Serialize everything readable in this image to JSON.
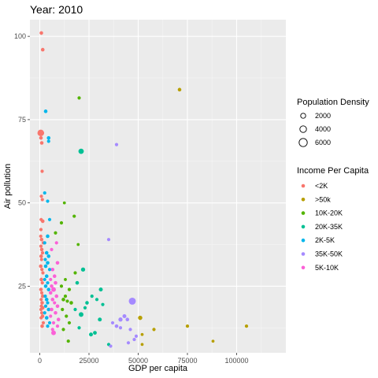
{
  "chart_data": {
    "type": "scatter",
    "title": "Year: 2010",
    "xlabel": "GDP per capita",
    "ylabel": "Air pollution",
    "xlim": [
      -5000,
      125000
    ],
    "ylim": [
      5,
      105
    ],
    "x_ticks": [
      0,
      25000,
      50000,
      75000,
      100000
    ],
    "x_tick_labels": [
      "0",
      "25000",
      "50000",
      "75000",
      "100000"
    ],
    "y_ticks": [
      25,
      50,
      75,
      100
    ],
    "y_tick_labels": [
      "25",
      "50",
      "75",
      "100"
    ],
    "grid": true,
    "background": "#ebebeb",
    "size_legend": {
      "title": "Population Density",
      "entries": [
        {
          "label": "2000",
          "value": 2000
        },
        {
          "label": "4000",
          "value": 4000
        },
        {
          "label": "6000",
          "value": 6000
        }
      ]
    },
    "color_legend": {
      "title": "Income Per Capita",
      "position": "right"
    },
    "series": [
      {
        "name": "<2K",
        "color": "#F8766D",
        "points": [
          {
            "x": 800,
            "y": 101,
            "s": 120
          },
          {
            "x": 1500,
            "y": 96,
            "s": 120
          },
          {
            "x": 500,
            "y": 71,
            "s": 400
          },
          {
            "x": 1200,
            "y": 71,
            "s": 150
          },
          {
            "x": 600,
            "y": 69.5,
            "s": 120
          },
          {
            "x": 1000,
            "y": 68,
            "s": 120
          },
          {
            "x": 1200,
            "y": 59.5,
            "s": 100
          },
          {
            "x": 800,
            "y": 52,
            "s": 100
          },
          {
            "x": 1300,
            "y": 51,
            "s": 100
          },
          {
            "x": 700,
            "y": 45,
            "s": 100
          },
          {
            "x": 1500,
            "y": 44.5,
            "s": 120
          },
          {
            "x": 600,
            "y": 42,
            "s": 100
          },
          {
            "x": 500,
            "y": 40,
            "s": 100
          },
          {
            "x": 900,
            "y": 39,
            "s": 120
          },
          {
            "x": 1800,
            "y": 38,
            "s": 100
          },
          {
            "x": 600,
            "y": 37,
            "s": 100
          },
          {
            "x": 1000,
            "y": 36,
            "s": 120
          },
          {
            "x": 1400,
            "y": 35,
            "s": 100
          },
          {
            "x": 700,
            "y": 34,
            "s": 120
          },
          {
            "x": 900,
            "y": 33,
            "s": 100
          },
          {
            "x": 500,
            "y": 31,
            "s": 120
          },
          {
            "x": 1100,
            "y": 30,
            "s": 100
          },
          {
            "x": 1600,
            "y": 29,
            "s": 100
          },
          {
            "x": 800,
            "y": 27,
            "s": 120
          },
          {
            "x": 1300,
            "y": 26,
            "s": 100
          },
          {
            "x": 600,
            "y": 24,
            "s": 120
          },
          {
            "x": 1000,
            "y": 23,
            "s": 100
          },
          {
            "x": 1500,
            "y": 22,
            "s": 120
          },
          {
            "x": 700,
            "y": 21,
            "s": 100
          },
          {
            "x": 1200,
            "y": 20,
            "s": 120
          },
          {
            "x": 800,
            "y": 19,
            "s": 100
          },
          {
            "x": 1500,
            "y": 18.5,
            "s": 120
          },
          {
            "x": 600,
            "y": 18,
            "s": 100
          },
          {
            "x": 1000,
            "y": 17,
            "s": 100
          },
          {
            "x": 1400,
            "y": 16,
            "s": 120
          },
          {
            "x": 700,
            "y": 15.5,
            "s": 100
          },
          {
            "x": 1800,
            "y": 14,
            "s": 100
          },
          {
            "x": 1200,
            "y": 13,
            "s": 120
          }
        ]
      },
      {
        "name": ">50k",
        "color": "#B79F00",
        "points": [
          {
            "x": 71000,
            "y": 84,
            "s": 120
          },
          {
            "x": 51000,
            "y": 15.5,
            "s": 170
          },
          {
            "x": 58000,
            "y": 12,
            "s": 100
          },
          {
            "x": 75000,
            "y": 13,
            "s": 100
          },
          {
            "x": 88000,
            "y": 8.5,
            "s": 80
          },
          {
            "x": 105000,
            "y": 13,
            "s": 100
          },
          {
            "x": 52000,
            "y": 10.5,
            "s": 80
          },
          {
            "x": 52000,
            "y": 7.5,
            "s": 80
          }
        ]
      },
      {
        "name": "10K-20K",
        "color": "#53B400",
        "points": [
          {
            "x": 20000,
            "y": 81.5,
            "s": 100
          },
          {
            "x": 12500,
            "y": 50,
            "s": 80
          },
          {
            "x": 17500,
            "y": 46,
            "s": 100
          },
          {
            "x": 11000,
            "y": 44,
            "s": 100
          },
          {
            "x": 19500,
            "y": 37.5,
            "s": 80
          },
          {
            "x": 18000,
            "y": 29,
            "s": 100
          },
          {
            "x": 13000,
            "y": 27,
            "s": 80
          },
          {
            "x": 11000,
            "y": 25,
            "s": 100
          },
          {
            "x": 15000,
            "y": 24,
            "s": 100
          },
          {
            "x": 13000,
            "y": 22,
            "s": 100
          },
          {
            "x": 12000,
            "y": 21,
            "s": 120
          },
          {
            "x": 14000,
            "y": 20.5,
            "s": 100
          },
          {
            "x": 16000,
            "y": 20,
            "s": 120
          },
          {
            "x": 11500,
            "y": 18,
            "s": 100
          },
          {
            "x": 13500,
            "y": 16,
            "s": 100
          },
          {
            "x": 15000,
            "y": 14,
            "s": 100
          },
          {
            "x": 12000,
            "y": 12,
            "s": 100
          },
          {
            "x": 14500,
            "y": 8.5,
            "s": 100
          },
          {
            "x": 8000,
            "y": 41,
            "s": 100
          }
        ]
      },
      {
        "name": "20K-35K",
        "color": "#00C094",
        "points": [
          {
            "x": 21000,
            "y": 65.5,
            "s": 260
          },
          {
            "x": 22000,
            "y": 30,
            "s": 160
          },
          {
            "x": 19000,
            "y": 26,
            "s": 120
          },
          {
            "x": 31000,
            "y": 24,
            "s": 140
          },
          {
            "x": 26500,
            "y": 22,
            "s": 100
          },
          {
            "x": 29000,
            "y": 21,
            "s": 100
          },
          {
            "x": 24000,
            "y": 20,
            "s": 120
          },
          {
            "x": 32000,
            "y": 19.5,
            "s": 100
          },
          {
            "x": 23000,
            "y": 18.5,
            "s": 100
          },
          {
            "x": 21000,
            "y": 16.5,
            "s": 200
          },
          {
            "x": 30500,
            "y": 15,
            "s": 140
          },
          {
            "x": 28000,
            "y": 11,
            "s": 130
          },
          {
            "x": 26000,
            "y": 10.5,
            "s": 140
          },
          {
            "x": 20000,
            "y": 12.5,
            "s": 100
          },
          {
            "x": 35000,
            "y": 7.5,
            "s": 100
          },
          {
            "x": 18000,
            "y": 18,
            "s": 100
          }
        ]
      },
      {
        "name": "2K-5K",
        "color": "#00B6EB",
        "points": [
          {
            "x": 3000,
            "y": 77.5,
            "s": 120
          },
          {
            "x": 4500,
            "y": 69.5,
            "s": 120
          },
          {
            "x": 4500,
            "y": 68.5,
            "s": 100
          },
          {
            "x": 2500,
            "y": 53,
            "s": 100
          },
          {
            "x": 4000,
            "y": 50.5,
            "s": 100
          },
          {
            "x": 5000,
            "y": 45,
            "s": 100
          },
          {
            "x": 4000,
            "y": 40,
            "s": 120
          },
          {
            "x": 2500,
            "y": 38,
            "s": 100
          },
          {
            "x": 3500,
            "y": 35,
            "s": 120
          },
          {
            "x": 4500,
            "y": 34,
            "s": 120
          },
          {
            "x": 2800,
            "y": 33,
            "s": 100
          },
          {
            "x": 4000,
            "y": 32,
            "s": 120
          },
          {
            "x": 3000,
            "y": 31,
            "s": 120
          },
          {
            "x": 5000,
            "y": 30,
            "s": 100
          },
          {
            "x": 3500,
            "y": 28,
            "s": 120
          },
          {
            "x": 2500,
            "y": 27,
            "s": 100
          },
          {
            "x": 4000,
            "y": 26,
            "s": 100
          },
          {
            "x": 3000,
            "y": 25,
            "s": 120
          },
          {
            "x": 4500,
            "y": 24,
            "s": 120
          },
          {
            "x": 2800,
            "y": 22,
            "s": 100
          },
          {
            "x": 3500,
            "y": 21,
            "s": 120
          },
          {
            "x": 4000,
            "y": 20,
            "s": 100
          },
          {
            "x": 3000,
            "y": 19,
            "s": 100
          },
          {
            "x": 4500,
            "y": 18,
            "s": 120
          },
          {
            "x": 2500,
            "y": 17,
            "s": 100
          },
          {
            "x": 3500,
            "y": 15.5,
            "s": 120
          },
          {
            "x": 5000,
            "y": 14,
            "s": 100
          },
          {
            "x": 4000,
            "y": 13,
            "s": 100
          }
        ]
      },
      {
        "name": "35K-50K",
        "color": "#A58AFF",
        "points": [
          {
            "x": 39000,
            "y": 67.5,
            "s": 100
          },
          {
            "x": 35000,
            "y": 39,
            "s": 100
          },
          {
            "x": 47000,
            "y": 20.5,
            "s": 450
          },
          {
            "x": 43000,
            "y": 16,
            "s": 140
          },
          {
            "x": 41000,
            "y": 15,
            "s": 160
          },
          {
            "x": 44500,
            "y": 15,
            "s": 120
          },
          {
            "x": 39000,
            "y": 13,
            "s": 120
          },
          {
            "x": 41000,
            "y": 12.5,
            "s": 100
          },
          {
            "x": 46000,
            "y": 12,
            "s": 100
          },
          {
            "x": 49000,
            "y": 10,
            "s": 100
          },
          {
            "x": 48000,
            "y": 9,
            "s": 100
          },
          {
            "x": 45000,
            "y": 8,
            "s": 100
          },
          {
            "x": 37000,
            "y": 14,
            "s": 100
          },
          {
            "x": 36000,
            "y": 7,
            "s": 100
          }
        ]
      },
      {
        "name": "5K-10K",
        "color": "#FB61D7",
        "points": [
          {
            "x": 8500,
            "y": 38,
            "s": 100
          },
          {
            "x": 6000,
            "y": 36,
            "s": 100
          },
          {
            "x": 9000,
            "y": 32,
            "s": 120
          },
          {
            "x": 6500,
            "y": 30,
            "s": 120
          },
          {
            "x": 7500,
            "y": 28,
            "s": 120
          },
          {
            "x": 5500,
            "y": 27,
            "s": 100
          },
          {
            "x": 8000,
            "y": 26,
            "s": 120
          },
          {
            "x": 6000,
            "y": 25,
            "s": 120
          },
          {
            "x": 7000,
            "y": 24,
            "s": 200
          },
          {
            "x": 5500,
            "y": 23,
            "s": 120
          },
          {
            "x": 8500,
            "y": 22,
            "s": 120
          },
          {
            "x": 6500,
            "y": 21,
            "s": 120
          },
          {
            "x": 7500,
            "y": 20,
            "s": 100
          },
          {
            "x": 9000,
            "y": 19,
            "s": 120
          },
          {
            "x": 6000,
            "y": 18,
            "s": 120
          },
          {
            "x": 8000,
            "y": 17,
            "s": 120
          },
          {
            "x": 5500,
            "y": 16,
            "s": 100
          },
          {
            "x": 9500,
            "y": 15,
            "s": 120
          },
          {
            "x": 7000,
            "y": 14,
            "s": 100
          },
          {
            "x": 6500,
            "y": 12,
            "s": 100
          },
          {
            "x": 7000,
            "y": 11,
            "s": 200
          },
          {
            "x": 9000,
            "y": 13,
            "s": 100
          }
        ]
      }
    ]
  }
}
